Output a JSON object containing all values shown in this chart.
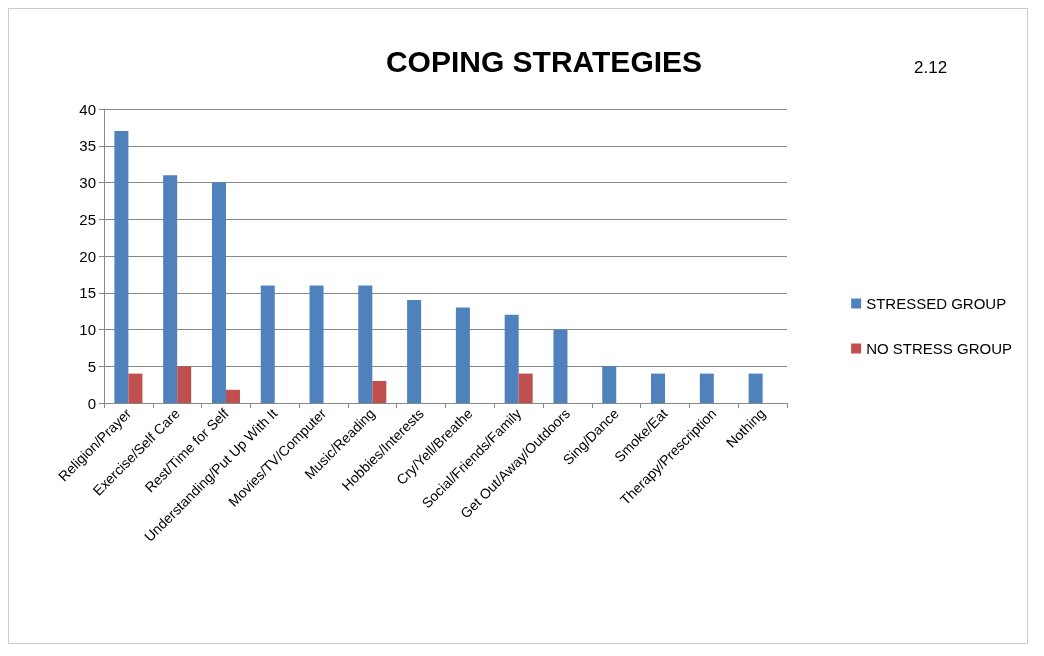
{
  "chart_data": {
    "type": "bar",
    "title": "COPING STRATEGIES",
    "annotations": [
      "2.12"
    ],
    "categories": [
      "Religion/Prayer",
      "Exercise/Self Care",
      "Rest/Time for Self",
      "Understanding/Put Up With It",
      "Movies/TV/Computer",
      "Music/Reading",
      "Hobbies/Interests",
      "Cry/Yell/Breathe",
      "Social/Friends/Family",
      "Get Out/Away/Outdoors",
      "Sing/Dance",
      "Smoke/Eat",
      "Therapy/Prescription",
      "Nothing"
    ],
    "series": [
      {
        "name": "STRESSED GROUP",
        "color": "#4f81bd",
        "values": [
          37,
          31,
          30,
          16,
          16,
          16,
          14,
          13,
          12,
          10,
          5,
          4,
          4,
          4
        ]
      },
      {
        "name": "NO STRESS GROUP",
        "color": "#c0504d",
        "values": [
          4,
          5,
          1.8,
          0,
          0,
          3,
          0,
          0,
          4,
          0,
          0,
          0,
          0,
          0
        ]
      }
    ],
    "ylim": [
      0,
      40
    ],
    "yticks": [
      0,
      5,
      10,
      15,
      20,
      25,
      30,
      35,
      40
    ],
    "grid": "y",
    "legend": "right"
  }
}
